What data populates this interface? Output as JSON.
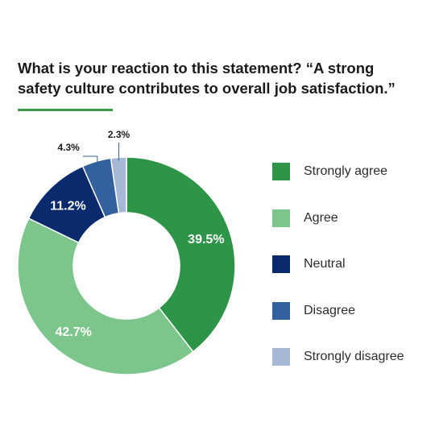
{
  "chart_data": {
    "type": "pie",
    "title": "What is your reaction to this statement? “A strong safety culture contributes to overall job satisfaction.”",
    "slices": [
      {
        "label": "Strongly agree",
        "value": 39.5,
        "display": "39.5%",
        "color": "#2e9447"
      },
      {
        "label": "Agree",
        "value": 42.7,
        "display": "42.7%",
        "color": "#7cc68b"
      },
      {
        "label": "Neutral",
        "value": 11.2,
        "display": "11.2%",
        "color": "#0a2a6e"
      },
      {
        "label": "Disagree",
        "value": 4.3,
        "display": "4.3%",
        "color": "#33609e"
      },
      {
        "label": "Strongly disagree",
        "value": 2.3,
        "display": "2.3%",
        "color": "#a7b8d6"
      }
    ],
    "legend_position": "right",
    "hole": "donut"
  }
}
